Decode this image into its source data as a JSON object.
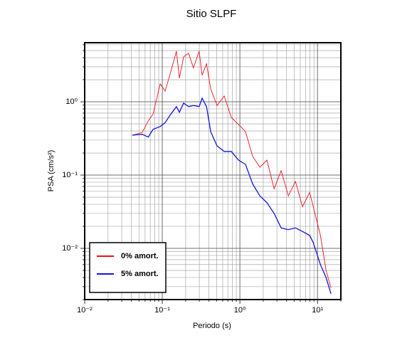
{
  "chart_data": {
    "type": "line",
    "title": "Sitio SLPF",
    "x_label": "Periodo (s)",
    "y_label": "PSA (cm/s²)",
    "log_x": true,
    "log_y": true,
    "grid": true,
    "legend": "lower left",
    "xlim": [
      0.01,
      20
    ],
    "ylim": [
      0.002,
      6.4
    ],
    "xticks": [
      {
        "value": 0.01,
        "label": "10⁻²"
      },
      {
        "value": 0.1,
        "label": "10⁻¹"
      },
      {
        "value": 1,
        "label": "10⁰"
      },
      {
        "value": 10,
        "label": "10¹"
      }
    ],
    "yticks": [
      {
        "value": 0.01,
        "label": "10⁻²"
      },
      {
        "value": 0.1,
        "label": "10⁻¹"
      },
      {
        "value": 1,
        "label": "10⁰"
      }
    ],
    "x": [
      0.041,
      0.055,
      0.066,
      0.076,
      0.094,
      0.109,
      0.129,
      0.152,
      0.166,
      0.188,
      0.218,
      0.252,
      0.299,
      0.326,
      0.371,
      0.421,
      0.508,
      0.628,
      0.776,
      0.96,
      1.18,
      1.46,
      1.81,
      2.23,
      2.76,
      3.4,
      4.21,
      5.2,
      6.41,
      7.93,
      8.81,
      10.9,
      12.9,
      14.9
    ],
    "series": [
      {
        "name": "0% amort.",
        "color": "#e8141c",
        "values": [
          0.35,
          0.38,
          0.55,
          0.68,
          1.75,
          1.4,
          2.6,
          4.9,
          2.1,
          4.1,
          4.6,
          2.9,
          4.9,
          2.3,
          3.3,
          1.5,
          0.89,
          1.2,
          0.61,
          0.49,
          0.39,
          0.18,
          0.128,
          0.16,
          0.065,
          0.115,
          0.052,
          0.082,
          0.037,
          0.058,
          0.037,
          0.015,
          0.005,
          0.0029
        ]
      },
      {
        "name": "5% amort.",
        "color": "#1414d8",
        "values": [
          0.35,
          0.36,
          0.33,
          0.42,
          0.46,
          0.52,
          0.68,
          0.86,
          0.72,
          0.96,
          0.86,
          0.89,
          0.86,
          1.12,
          0.86,
          0.39,
          0.25,
          0.21,
          0.21,
          0.16,
          0.14,
          0.076,
          0.052,
          0.042,
          0.03,
          0.019,
          0.018,
          0.019,
          0.017,
          0.015,
          0.012,
          0.006,
          0.004,
          0.0024
        ]
      }
    ]
  }
}
